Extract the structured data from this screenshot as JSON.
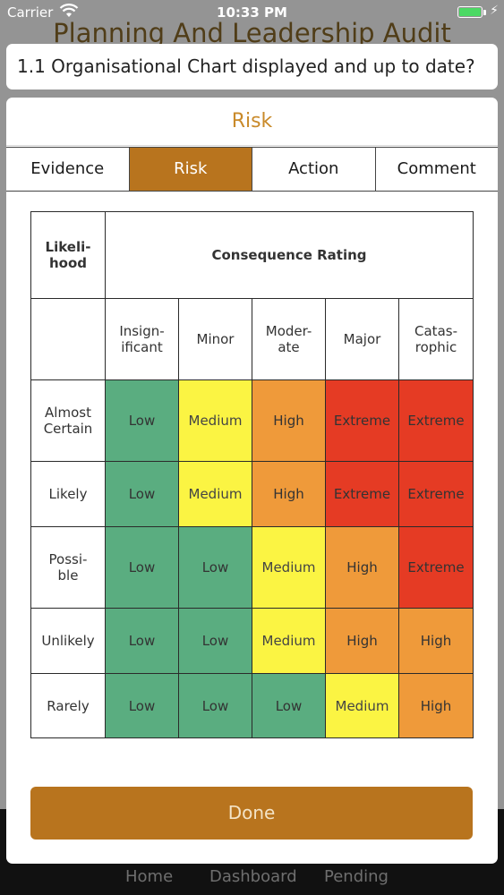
{
  "status_bar": {
    "carrier": "Carrier",
    "time": "10:33 PM"
  },
  "background": {
    "title": "Planning And Leadership Audit",
    "tabs": [
      "Home",
      "Dashboard",
      "Pending"
    ]
  },
  "question": "1.1 Organisational Chart displayed and up to date?",
  "modal": {
    "title": "Risk",
    "tabs": [
      {
        "label": "Evidence",
        "active": false
      },
      {
        "label": "Risk",
        "active": true
      },
      {
        "label": "Action",
        "active": false
      },
      {
        "label": "Comment",
        "active": false
      }
    ],
    "matrix": {
      "likelihood_header": "Likeli-\nhood",
      "consequence_header": "Consequence Rating",
      "consequences": [
        "Insign-\nificant",
        "Minor",
        "Moder-\nate",
        "Major",
        "Catas-\nrophic"
      ],
      "rows": [
        {
          "likelihood": "Almost\nCertain",
          "ratings": [
            "Low",
            "Medium",
            "High",
            "Extreme",
            "Extreme"
          ]
        },
        {
          "likelihood": "Likely",
          "ratings": [
            "Low",
            "Medium",
            "High",
            "Extreme",
            "Extreme"
          ]
        },
        {
          "likelihood": "Possi-\nble",
          "ratings": [
            "Low",
            "Low",
            "Medium",
            "High",
            "Extreme"
          ]
        },
        {
          "likelihood": "Unlikely",
          "ratings": [
            "Low",
            "Low",
            "Medium",
            "High",
            "High"
          ]
        },
        {
          "likelihood": "Rarely",
          "ratings": [
            "Low",
            "Low",
            "Low",
            "Medium",
            "High"
          ]
        }
      ],
      "colors": {
        "Low": "#5aad80",
        "Medium": "#fbf443",
        "High": "#ef9a3a",
        "Extreme": "#e53b24"
      }
    },
    "done_label": "Done"
  },
  "colors": {
    "accent": "#b8741e",
    "title": "#c98a2a"
  }
}
